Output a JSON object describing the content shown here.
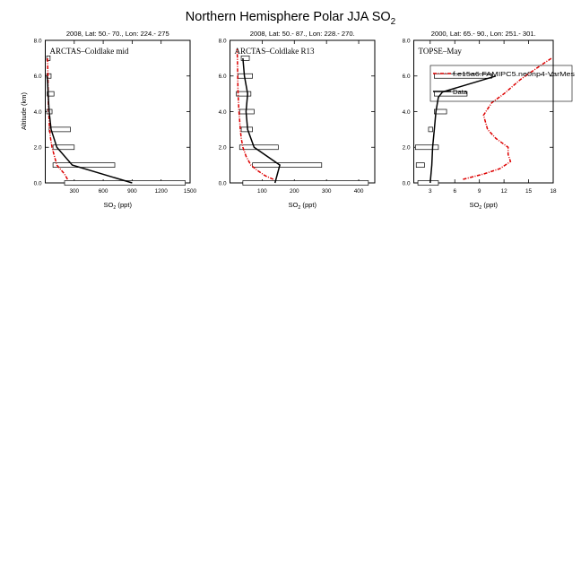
{
  "figure_title": "Northern Hemisphere Polar JJA SO",
  "figure_title_sub": "2",
  "ylabel": "Altitude (km)",
  "legend": {
    "model": "f.e15a6.FAMIPC5.ne0np4-VarMes",
    "data": "Data"
  },
  "colors": {
    "model": "#dd0000",
    "data": "#000000",
    "box": "#000000"
  },
  "chart_data": [
    {
      "type": "line",
      "header": "2008, Lat:  50.- 70., Lon: 224.- 275",
      "label": "ARCTAS–Coldlake mid",
      "xlabel_main": "SO",
      "xlabel_sub": "2",
      "xlabel_unit": " (ppt)",
      "xlim": [
        0,
        1500
      ],
      "ylim": [
        0,
        8
      ],
      "xticks": [
        300,
        600,
        900,
        1200,
        1500
      ],
      "xtick_labels": [
        "300",
        "600",
        "900",
        "1200",
        "1500"
      ],
      "yticks": [
        0,
        2,
        4,
        6,
        8
      ],
      "ytick_labels": [
        "0.0",
        "2.0",
        "4.0",
        "6.0",
        "8.0"
      ],
      "data_line": {
        "x": [
          900,
          280,
          120,
          60,
          40,
          30,
          20
        ],
        "y": [
          0,
          1,
          2,
          3,
          4,
          5,
          6
        ]
      },
      "model_line": {
        "x": [
          230,
          200,
          120,
          95,
          70,
          55,
          45,
          40,
          35,
          32,
          30,
          28,
          25,
          22
        ],
        "y": [
          0.2,
          0.5,
          1.0,
          1.5,
          2.0,
          2.5,
          3.0,
          3.5,
          4.0,
          4.5,
          5.0,
          6.0,
          6.5,
          7.0
        ]
      },
      "boxes": [
        {
          "y": 0.0,
          "lo": 200,
          "hi": 1450
        },
        {
          "y": 1.0,
          "lo": 80,
          "hi": 720
        },
        {
          "y": 2.0,
          "lo": 80,
          "hi": 300
        },
        {
          "y": 3.0,
          "lo": 40,
          "hi": 260
        },
        {
          "y": 4.0,
          "lo": 15,
          "hi": 70
        },
        {
          "y": 5.0,
          "lo": 20,
          "hi": 90
        },
        {
          "y": 6.0,
          "lo": 15,
          "hi": 60
        },
        {
          "y": 7.0,
          "lo": 15,
          "hi": 50
        }
      ]
    },
    {
      "type": "line",
      "header": "2008, Lat:  50.- 87., Lon: 228.- 270.",
      "label": "ARCTAS–Coldlake R13",
      "xlabel_main": "SO",
      "xlabel_sub": "2",
      "xlabel_unit": " (ppt)",
      "xlim": [
        0,
        450
      ],
      "ylim": [
        0,
        8
      ],
      "xticks": [
        100,
        200,
        300,
        400
      ],
      "xtick_labels": [
        "100",
        "200",
        "300",
        "400"
      ],
      "yticks": [
        0,
        2,
        4,
        6,
        8
      ],
      "ytick_labels": [
        "0.0",
        "2.0",
        "4.0",
        "6.0",
        "8.0"
      ],
      "data_line": {
        "x": [
          140,
          155,
          75,
          55,
          50,
          55,
          45,
          40
        ],
        "y": [
          0,
          1,
          2,
          3,
          4,
          5,
          6,
          7
        ]
      },
      "model_line": {
        "x": [
          135,
          110,
          85,
          65,
          50,
          40,
          35,
          32,
          30,
          28,
          25,
          24,
          23,
          22
        ],
        "y": [
          0.2,
          0.4,
          0.7,
          1.0,
          1.5,
          2.0,
          2.5,
          3.0,
          3.5,
          4.0,
          5.0,
          6.0,
          7.0,
          7.5
        ]
      },
      "boxes": [
        {
          "y": 0.0,
          "lo": 40,
          "hi": 430
        },
        {
          "y": 1.0,
          "lo": 70,
          "hi": 285
        },
        {
          "y": 2.0,
          "lo": 30,
          "hi": 150
        },
        {
          "y": 3.0,
          "lo": 35,
          "hi": 70
        },
        {
          "y": 4.0,
          "lo": 30,
          "hi": 75
        },
        {
          "y": 5.0,
          "lo": 20,
          "hi": 65
        },
        {
          "y": 6.0,
          "lo": 25,
          "hi": 70
        },
        {
          "y": 7.0,
          "lo": 35,
          "hi": 60
        }
      ]
    },
    {
      "type": "line",
      "header": "2000, Lat: 65.- 90., Lon: 251.- 301.",
      "label": "TOPSE–May",
      "xlabel_main": "SO",
      "xlabel_sub": "2",
      "xlabel_unit": " (ppt)",
      "xlim": [
        1,
        18
      ],
      "ylim": [
        0,
        8
      ],
      "xticks": [
        3,
        6,
        9,
        12,
        15,
        18
      ],
      "xtick_labels": [
        "3",
        "6",
        "9",
        "12",
        "15",
        "18"
      ],
      "yticks": [
        0,
        2,
        4,
        6,
        8
      ],
      "ytick_labels": [
        "0.0",
        "2.0",
        "4.0",
        "6.0",
        "8.0"
      ],
      "data_line": {
        "x": [
          3.0,
          3.2,
          3.3,
          3.5,
          3.7,
          4.0,
          4.5,
          11.0
        ],
        "y": [
          0,
          1,
          2,
          3,
          4,
          4.8,
          5.1,
          6.0
        ]
      },
      "model_line": {
        "x": [
          7.0,
          9.5,
          11.5,
          12.8,
          12.5,
          12.5,
          11.0,
          10.0,
          9.5,
          10.5,
          12.0,
          14.0,
          16.5,
          17.8
        ],
        "y": [
          0.2,
          0.5,
          0.8,
          1.2,
          1.6,
          2.0,
          2.5,
          3.0,
          3.8,
          4.5,
          5.0,
          5.8,
          6.6,
          7.0
        ]
      },
      "boxes": [
        {
          "y": 0.0,
          "lo": 1.5,
          "hi": 4.0
        },
        {
          "y": 1.0,
          "lo": 1.3,
          "hi": 2.3
        },
        {
          "y": 2.0,
          "lo": 1.2,
          "hi": 4.0
        },
        {
          "y": 3.0,
          "lo": 2.8,
          "hi": 3.3
        },
        {
          "y": 4.0,
          "lo": 3.5,
          "hi": 5.0
        },
        {
          "y": 5.0,
          "lo": 3.5,
          "hi": 7.5
        },
        {
          "y": 6.0,
          "lo": 3.5,
          "hi": 10.5
        }
      ]
    }
  ]
}
